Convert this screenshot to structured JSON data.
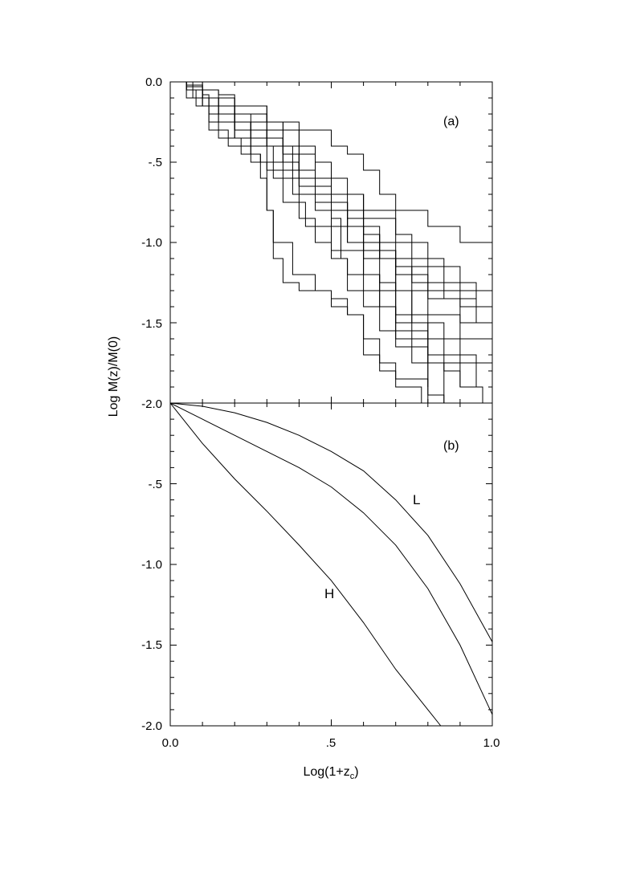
{
  "chart_data": [
    {
      "type": "line",
      "panel_label": "(a)",
      "ylabel": "Log M(z)/M(0)",
      "xlabel": "",
      "xlim": [
        0.0,
        1.0
      ],
      "ylim": [
        -2.0,
        0.0
      ],
      "y_ticks": [
        "0.0",
        "-.5",
        "-1.0",
        "-1.5",
        "-2.0"
      ],
      "x_ticks": [],
      "grid": false,
      "legend": "none",
      "series": [
        {
          "x": [
            0,
            0.05,
            0.1,
            0.12,
            0.2,
            0.25,
            0.3,
            0.32,
            0.4,
            0.45,
            0.5,
            0.55,
            0.6,
            0.7,
            0.8,
            0.9,
            1.0
          ],
          "y": [
            0,
            -0.02,
            -0.08,
            -0.2,
            -0.3,
            -0.35,
            -0.4,
            -0.6,
            -0.65,
            -0.8,
            -0.9,
            -1.0,
            -1.05,
            -1.15,
            -1.3,
            -1.4,
            -1.55
          ]
        },
        {
          "x": [
            0,
            0.05,
            0.1,
            0.15,
            0.2,
            0.3,
            0.35,
            0.4,
            0.45,
            0.55,
            0.6,
            0.7,
            0.75,
            0.85,
            0.95,
            1.0
          ],
          "y": [
            0,
            -0.03,
            -0.1,
            -0.15,
            -0.25,
            -0.3,
            -0.45,
            -0.55,
            -0.7,
            -0.85,
            -1.0,
            -1.1,
            -1.25,
            -1.35,
            -1.5,
            -1.6
          ]
        },
        {
          "x": [
            0,
            0.05,
            0.08,
            0.15,
            0.25,
            0.3,
            0.35,
            0.4,
            0.5,
            0.55,
            0.6,
            0.7,
            0.8,
            0.9,
            1.0
          ],
          "y": [
            0,
            -0.05,
            -0.15,
            -0.25,
            -0.3,
            -0.35,
            -0.5,
            -0.6,
            -0.75,
            -0.9,
            -1.1,
            -1.2,
            -1.35,
            -1.5,
            -1.65
          ]
        },
        {
          "x": [
            0,
            0.05,
            0.1,
            0.2,
            0.3,
            0.35,
            0.4,
            0.45,
            0.5,
            0.6,
            0.7,
            0.75,
            0.85,
            0.95,
            1.0
          ],
          "y": [
            0,
            -0.05,
            -0.1,
            -0.2,
            -0.25,
            -0.3,
            -0.45,
            -0.6,
            -0.7,
            -0.8,
            -0.95,
            -1.1,
            -1.25,
            -1.4,
            -1.55
          ]
        },
        {
          "x": [
            0,
            0.1,
            0.2,
            0.3,
            0.4,
            0.5,
            0.55,
            0.6,
            0.65,
            0.7,
            0.8,
            0.9,
            1.0
          ],
          "y": [
            0,
            -0.1,
            -0.15,
            -0.25,
            -0.3,
            -0.4,
            -0.45,
            -0.55,
            -0.7,
            -0.8,
            -0.9,
            -1.0,
            -1.1
          ]
        },
        {
          "x": [
            0,
            0.07,
            0.12,
            0.18,
            0.25,
            0.3,
            0.35,
            0.42,
            0.5,
            0.6,
            0.65,
            0.7,
            0.8,
            0.85,
            0.9,
            0.97
          ],
          "y": [
            0,
            -0.1,
            -0.3,
            -0.4,
            -0.5,
            -0.55,
            -0.75,
            -0.9,
            -1.05,
            -1.2,
            -1.4,
            -1.55,
            -1.7,
            -1.8,
            -1.9,
            -2.0
          ]
        },
        {
          "x": [
            0,
            0.05,
            0.1,
            0.15,
            0.22,
            0.28,
            0.3,
            0.32,
            0.35,
            0.4,
            0.5,
            0.55,
            0.6,
            0.65,
            0.7,
            0.78
          ],
          "y": [
            0,
            -0.05,
            -0.15,
            -0.35,
            -0.45,
            -0.5,
            -0.8,
            -1.1,
            -1.25,
            -1.3,
            -1.35,
            -1.45,
            -1.7,
            -1.8,
            -1.9,
            -2.0
          ]
        },
        {
          "x": [
            0,
            0.05,
            0.12,
            0.2,
            0.25,
            0.28,
            0.3,
            0.32,
            0.38,
            0.45,
            0.5,
            0.55,
            0.6,
            0.65,
            0.7,
            0.8,
            0.85
          ],
          "y": [
            0,
            -0.1,
            -0.25,
            -0.35,
            -0.45,
            -0.6,
            -0.8,
            -1.0,
            -1.2,
            -1.3,
            -1.4,
            -1.45,
            -1.6,
            -1.75,
            -1.85,
            -1.95,
            -2.0
          ]
        },
        {
          "x": [
            0,
            0.05,
            0.1,
            0.15,
            0.2,
            0.3,
            0.35,
            0.4,
            0.5,
            0.53,
            0.55,
            0.6,
            0.65,
            0.7,
            0.8,
            0.9
          ],
          "y": [
            0,
            -0.05,
            -0.15,
            -0.2,
            -0.35,
            -0.4,
            -0.5,
            -0.7,
            -0.85,
            -1.1,
            -1.3,
            -1.4,
            -1.55,
            -1.65,
            -1.75,
            -1.9
          ]
        },
        {
          "x": [
            0,
            0.05,
            0.1,
            0.15,
            0.2,
            0.25,
            0.35,
            0.4,
            0.45,
            0.5,
            0.6,
            0.65,
            0.7,
            0.75,
            0.8,
            0.85
          ],
          "y": [
            0,
            -0.05,
            -0.1,
            -0.15,
            -0.25,
            -0.35,
            -0.45,
            -0.55,
            -0.7,
            -0.8,
            -0.95,
            -1.1,
            -1.3,
            -1.5,
            -1.75,
            -2.0
          ]
        },
        {
          "x": [
            0,
            0.05,
            0.1,
            0.2,
            0.3,
            0.35,
            0.4,
            0.45,
            0.5,
            0.55,
            0.6,
            0.7,
            0.75,
            0.8,
            0.9,
            1.0
          ],
          "y": [
            0,
            -0.05,
            -0.15,
            -0.2,
            -0.3,
            -0.4,
            -0.55,
            -0.65,
            -0.75,
            -0.9,
            -1.05,
            -1.15,
            -1.3,
            -1.45,
            -1.6,
            -1.7
          ]
        },
        {
          "x": [
            0,
            0.05,
            0.1,
            0.15,
            0.2,
            0.3,
            0.35,
            0.4,
            0.45,
            0.5,
            0.6,
            0.65,
            0.7,
            0.75,
            0.8
          ],
          "y": [
            0,
            -0.05,
            -0.1,
            -0.2,
            -0.3,
            -0.35,
            -0.45,
            -0.55,
            -0.6,
            -0.7,
            -0.95,
            -1.25,
            -1.5,
            -1.75,
            -2.0
          ]
        },
        {
          "x": [
            0,
            0.05,
            0.1,
            0.15,
            0.2,
            0.25,
            0.3,
            0.35,
            0.38,
            0.4,
            0.45,
            0.5,
            0.55,
            0.6,
            0.7,
            0.8,
            0.9,
            1.0
          ],
          "y": [
            0,
            -0.02,
            -0.05,
            -0.15,
            -0.25,
            -0.3,
            -0.35,
            -0.4,
            -0.7,
            -0.85,
            -1.0,
            -1.1,
            -1.2,
            -1.3,
            -1.45,
            -1.6,
            -1.75,
            -1.85
          ]
        },
        {
          "x": [
            0,
            0.05,
            0.1,
            0.15,
            0.2,
            0.3,
            0.35,
            0.4,
            0.45,
            0.5,
            0.55,
            0.6,
            0.7,
            0.8,
            0.9,
            1.0
          ],
          "y": [
            0,
            -0.02,
            -0.05,
            -0.08,
            -0.15,
            -0.25,
            -0.3,
            -0.4,
            -0.5,
            -0.6,
            -0.7,
            -0.85,
            -1.0,
            -1.15,
            -1.3,
            -1.4
          ]
        },
        {
          "x": [
            0,
            0.05,
            0.1,
            0.15,
            0.2,
            0.25,
            0.3,
            0.35,
            0.4,
            0.45,
            0.5,
            0.55,
            0.6,
            0.65,
            0.7,
            0.8
          ],
          "y": [
            0,
            -0.03,
            -0.1,
            -0.15,
            -0.2,
            -0.3,
            -0.4,
            -0.5,
            -0.6,
            -0.7,
            -0.8,
            -1.0,
            -1.2,
            -1.4,
            -1.6,
            -1.9
          ]
        },
        {
          "x": [
            0,
            0.05,
            0.1,
            0.15,
            0.2,
            0.25,
            0.3,
            0.35,
            0.4,
            0.45,
            0.55,
            0.65,
            0.7,
            0.75,
            0.85,
            0.95
          ],
          "y": [
            0,
            -0.05,
            -0.1,
            -0.2,
            -0.3,
            -0.4,
            -0.5,
            -0.55,
            -0.65,
            -0.75,
            -0.9,
            -1.1,
            -1.3,
            -1.5,
            -1.7,
            -1.9
          ]
        }
      ]
    },
    {
      "type": "line",
      "panel_label": "(b)",
      "ylabel": "Log M(z)/M(0)",
      "xlabel": "Log(1+z",
      "xlabel_subscript": "c",
      "xlabel_close": ")",
      "xlim": [
        0.0,
        1.0
      ],
      "ylim": [
        -2.0,
        0.0
      ],
      "x_ticks": [
        "0.0",
        ".5",
        "1.0"
      ],
      "y_ticks": [
        "-.5",
        "-1.0",
        "-1.5",
        "-2.0"
      ],
      "grid": false,
      "legend": "none",
      "series": [
        {
          "name": "L",
          "x": [
            0,
            0.1,
            0.2,
            0.3,
            0.4,
            0.5,
            0.6,
            0.7,
            0.8,
            0.9,
            1.0
          ],
          "y": [
            0,
            -0.02,
            -0.06,
            -0.12,
            -0.2,
            -0.3,
            -0.42,
            -0.6,
            -0.82,
            -1.12,
            -1.48
          ]
        },
        {
          "name": "",
          "x": [
            0,
            0.1,
            0.2,
            0.3,
            0.4,
            0.5,
            0.6,
            0.7,
            0.8,
            0.9,
            1.0
          ],
          "y": [
            0,
            -0.1,
            -0.2,
            -0.3,
            -0.4,
            -0.52,
            -0.68,
            -0.88,
            -1.15,
            -1.5,
            -1.93
          ]
        },
        {
          "name": "H",
          "x": [
            0,
            0.1,
            0.2,
            0.3,
            0.4,
            0.5,
            0.6,
            0.7,
            0.8,
            0.84
          ],
          "y": [
            0,
            -0.25,
            -0.47,
            -0.67,
            -0.88,
            -1.1,
            -1.36,
            -1.65,
            -1.9,
            -2.0
          ]
        }
      ],
      "annotations": [
        {
          "text": "L",
          "x": 0.77,
          "y": -0.6
        },
        {
          "text": "H",
          "x": 0.5,
          "y": -1.0
        }
      ]
    }
  ]
}
